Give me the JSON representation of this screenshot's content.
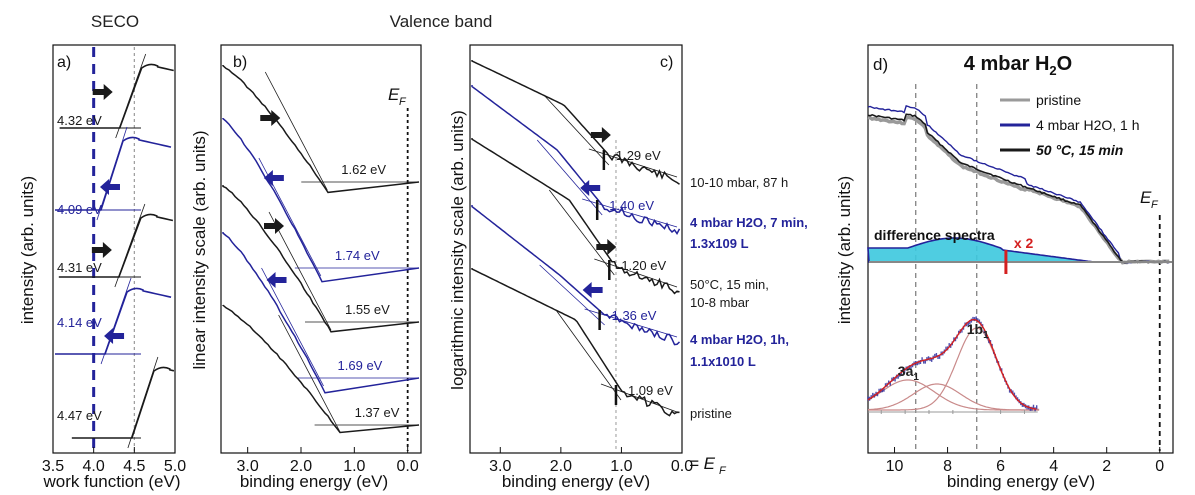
{
  "colors": {
    "black": "#1a1a1a",
    "blue": "#23239a",
    "gray": "#9a9a9a",
    "cyan": "#3cc8de",
    "red": "#d42020",
    "fit": "#c98a8a"
  },
  "headers": {
    "seco": "SECO",
    "valence": "Valence band"
  },
  "chart_data": [
    {
      "type": "line",
      "panel_label": "a)",
      "xlabel": "work function (eV)",
      "ylabel": "intensity (arb. units)",
      "xlim": [
        3.5,
        5.0
      ],
      "xticks": [
        "3.5",
        "4.0",
        "4.5",
        "5.0"
      ],
      "reference_lines": [
        {
          "x": 4.0,
          "style": "dashed",
          "color": "blue"
        },
        {
          "x": 4.5,
          "style": "dotted",
          "color": "gray"
        }
      ],
      "series": [
        {
          "label": "4.32 eV",
          "onset": 4.32,
          "color": "black",
          "arrow": "right"
        },
        {
          "label": "4.09 eV",
          "onset": 4.09,
          "color": "blue",
          "arrow": "left"
        },
        {
          "label": "4.31 eV",
          "onset": 4.31,
          "color": "black",
          "arrow": "right"
        },
        {
          "label": "4.14 eV",
          "onset": 4.14,
          "color": "blue",
          "arrow": "left"
        },
        {
          "label": "4.47 eV",
          "onset": 4.47,
          "color": "black",
          "arrow": ""
        }
      ]
    },
    {
      "type": "line",
      "panel_label": "b)",
      "xlabel": "binding energy (eV)",
      "ylabel": "linear intensity scale (arb. units)",
      "xlim": [
        3.5,
        -0.25
      ],
      "xticks": [
        "3.0",
        "2.0",
        "1.0",
        "0.0"
      ],
      "fermi_label": "E",
      "fermi_sub": "F",
      "series": [
        {
          "label": "1.62 eV",
          "onset": 1.62,
          "color": "black",
          "arrow": "right"
        },
        {
          "label": "1.74 eV",
          "onset": 1.74,
          "color": "blue",
          "arrow": "left"
        },
        {
          "label": "1.55 eV",
          "onset": 1.55,
          "color": "black",
          "arrow": "right"
        },
        {
          "label": "1.69 eV",
          "onset": 1.69,
          "color": "blue",
          "arrow": "left"
        },
        {
          "label": "1.37 eV",
          "onset": 1.37,
          "color": "black",
          "arrow": ""
        }
      ]
    },
    {
      "type": "line",
      "panel_label": "c)",
      "xlabel": "binding energy (eV)",
      "ylabel": "logarithmic intensity scale (arb. units)",
      "xlim": [
        3.5,
        0.0
      ],
      "xticks": [
        "3.0",
        "2.0",
        "1.0",
        "0.0"
      ],
      "xtick_suffix": "= E",
      "xtick_suffix_sub": "F",
      "reference_lines": [
        {
          "x": 1.09,
          "style": "dotted",
          "color": "gray"
        }
      ],
      "series": [
        {
          "label": "1.29 eV",
          "onset": 1.29,
          "color": "black",
          "arrow": "right",
          "legend": [
            "10-10 mbar, 87 h"
          ]
        },
        {
          "label": "1.40 eV",
          "onset": 1.4,
          "color": "blue",
          "arrow": "left",
          "legend": [
            "4 mbar H2O, 7 min,",
            "1.3x109 L"
          ]
        },
        {
          "label": "1.20 eV",
          "onset": 1.2,
          "color": "black",
          "arrow": "right",
          "legend": [
            "50°C, 15 min,",
            "10-8 mbar"
          ]
        },
        {
          "label": "1.36 eV",
          "onset": 1.36,
          "color": "blue",
          "arrow": "left",
          "legend": [
            "4 mbar H2O, 1h,",
            "1.1x1010 L"
          ]
        },
        {
          "label": "1.09 eV",
          "onset": 1.09,
          "color": "black",
          "arrow": "",
          "legend": [
            "pristine"
          ]
        }
      ]
    },
    {
      "type": "line",
      "panel_label": "d)",
      "title": "4 mbar H2O",
      "xlabel": "binding energy (eV)",
      "ylabel": "intensity (arb. units)",
      "xlim": [
        11,
        -0.5
      ],
      "xticks": [
        "10",
        "8",
        "6",
        "4",
        "2",
        "0"
      ],
      "fermi_label": "E",
      "fermi_sub": "F",
      "reference_lines": [
        {
          "x": 9.2,
          "style": "dashed",
          "color": "gray"
        },
        {
          "x": 6.9,
          "style": "dashed",
          "color": "gray"
        }
      ],
      "legend": [
        {
          "label": "pristine",
          "color": "gray"
        },
        {
          "label": "4 mbar H2O, 1 h",
          "color": "blue"
        },
        {
          "label": "50 °C, 15 min",
          "color": "black",
          "bold": true
        }
      ],
      "annotations": [
        "difference spectra",
        "x 2"
      ],
      "peaks": [
        {
          "label": "3a1",
          "x": 9.5
        },
        {
          "label": "1b1",
          "x": 6.9
        }
      ]
    }
  ]
}
